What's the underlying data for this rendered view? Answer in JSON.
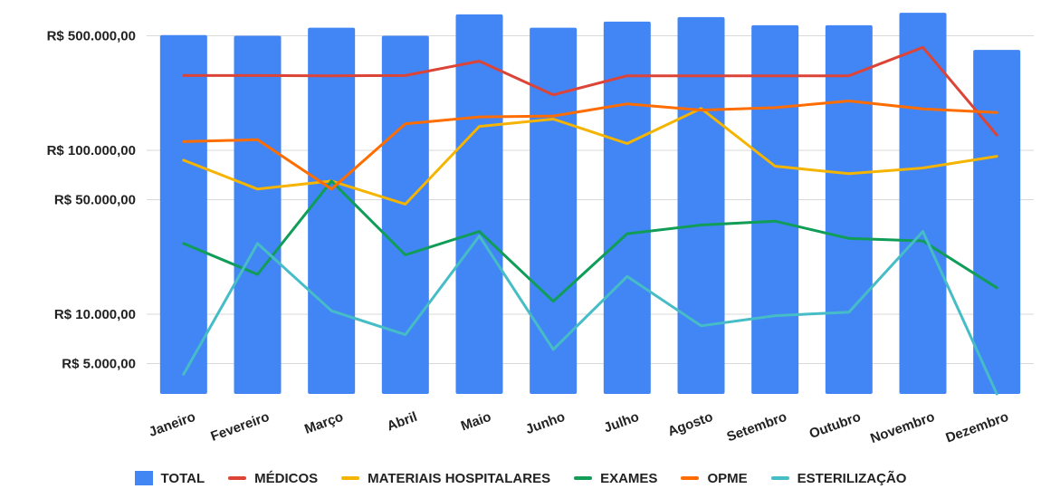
{
  "chart_data": {
    "type": "bar+line",
    "y_scale": "log",
    "ylim": [
      3000,
      700000
    ],
    "y_ticks": [
      {
        "value": 5000,
        "label": "R$ 5.000,00"
      },
      {
        "value": 10000,
        "label": "R$ 10.000,00"
      },
      {
        "value": 50000,
        "label": "R$ 50.000,00"
      },
      {
        "value": 100000,
        "label": "R$ 100.000,00"
      },
      {
        "value": 500000,
        "label": "R$ 500.000,00"
      }
    ],
    "grid": true,
    "legend_position": "bottom",
    "categories": [
      "Janeiro",
      "Fevereiro",
      "Março",
      "Abril",
      "Maio",
      "Junho",
      "Julho",
      "Agosto",
      "Setembro",
      "Outubro",
      "Novembro",
      "Dezembro"
    ],
    "series": [
      {
        "name": "TOTAL",
        "kind": "bar",
        "color": "#4285f4",
        "values": [
          505000,
          500000,
          560000,
          500000,
          675000,
          560000,
          610000,
          650000,
          580000,
          580000,
          690000,
          410000
        ]
      },
      {
        "name": "MÉDICOS",
        "kind": "line",
        "color": "#db4437",
        "values": [
          286000,
          286000,
          285000,
          286000,
          350000,
          218000,
          285000,
          285000,
          285000,
          285000,
          425000,
          124000
        ]
      },
      {
        "name": "MATERIAIS HOSPITALARES",
        "kind": "line",
        "color": "#f4b400",
        "values": [
          87000,
          58000,
          65000,
          47000,
          140000,
          155000,
          110000,
          180000,
          80000,
          72000,
          78000,
          92000
        ]
      },
      {
        "name": "EXAMES",
        "kind": "line",
        "color": "#0f9d58",
        "values": [
          27000,
          17500,
          65000,
          23000,
          32000,
          12000,
          31000,
          35000,
          37000,
          29000,
          28000,
          14500
        ]
      },
      {
        "name": "OPME",
        "kind": "line",
        "color": "#ff6d01",
        "values": [
          113000,
          116000,
          58000,
          145000,
          160000,
          162000,
          192000,
          176000,
          182000,
          200000,
          179000,
          170000
        ]
      },
      {
        "name": "ESTERILIZAÇÃO",
        "kind": "line",
        "color": "#46bdc6",
        "values": [
          4300,
          27000,
          10500,
          7500,
          30000,
          6100,
          17000,
          8500,
          9800,
          10300,
          32000,
          2950
        ]
      }
    ]
  }
}
